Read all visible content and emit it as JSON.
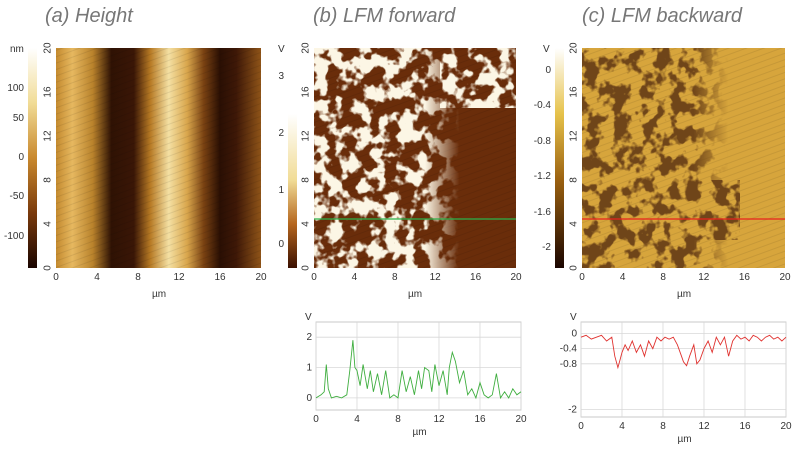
{
  "panels": [
    {
      "title": "(a) Height",
      "colorbar": {
        "unit": "nm",
        "ticks": [
          "100",
          "50",
          "0",
          "-50",
          "-100"
        ]
      },
      "yticks": [
        "20",
        "16",
        "12",
        "8",
        "4",
        "0"
      ],
      "xticks": [
        "0",
        "4",
        "8",
        "12",
        "16",
        "20"
      ],
      "xlabel": "µm"
    },
    {
      "title": "(b) LFM forward",
      "colorbar": {
        "unit": "V",
        "ticks": [
          "3",
          "2",
          "1",
          "0"
        ]
      },
      "yticks": [
        "20",
        "16",
        "12",
        "8",
        "4",
        "0"
      ],
      "xticks": [
        "0",
        "4",
        "8",
        "12",
        "16",
        "20"
      ],
      "xlabel": "µm",
      "scan_line_color": "#2bb34a"
    },
    {
      "title": "(c) LFM backward",
      "colorbar": {
        "unit": "V",
        "ticks": [
          "0",
          "-0.4",
          "-0.8",
          "-1.2",
          "-1.6",
          "-2"
        ]
      },
      "yticks": [
        "20",
        "16",
        "12",
        "8",
        "4",
        "0"
      ],
      "xticks": [
        "0",
        "4",
        "8",
        "12",
        "16",
        "20"
      ],
      "xlabel": "µm",
      "scan_line_color": "#e8231e"
    }
  ],
  "chart_data": [
    {
      "type": "line",
      "title": "",
      "xlabel": "µm",
      "ylabel": "V",
      "xlim": [
        0,
        20
      ],
      "ylim": [
        -0.4,
        2.5
      ],
      "yticks": [
        "2",
        "1",
        "0"
      ],
      "xticks": [
        "0",
        "4",
        "8",
        "12",
        "16",
        "20"
      ],
      "grid": true,
      "color": "#3fae3f",
      "series": [
        {
          "x": [
            0,
            0.5,
            0.8,
            1.0,
            1.2,
            1.5,
            2.0,
            2.5,
            3.0,
            3.3,
            3.6,
            3.8,
            4.0,
            4.3,
            4.6,
            5.0,
            5.3,
            5.6,
            6.0,
            6.4,
            6.8,
            7.2,
            7.6,
            8.0,
            8.4,
            8.8,
            9.2,
            9.6,
            10.0,
            10.3,
            10.6,
            11.0,
            11.3,
            11.6,
            12.0,
            12.4,
            12.8,
            13.0,
            13.3,
            13.6,
            14.0,
            14.4,
            14.8,
            15.2,
            15.6,
            16.0,
            16.4,
            16.8,
            17.2,
            17.6,
            18.0,
            18.4,
            18.8,
            19.2,
            19.6,
            20.0
          ],
          "y": [
            0.0,
            0.1,
            0.2,
            1.1,
            0.3,
            0.0,
            0.05,
            0.0,
            0.1,
            0.9,
            1.9,
            1.0,
            0.9,
            0.4,
            1.1,
            0.3,
            0.9,
            0.2,
            0.8,
            0.1,
            0.9,
            0.0,
            0.1,
            0.0,
            0.9,
            0.2,
            0.7,
            0.1,
            0.9,
            0.3,
            1.0,
            0.9,
            0.2,
            1.1,
            0.4,
            0.9,
            0.1,
            1.0,
            1.5,
            1.2,
            0.5,
            0.9,
            0.1,
            0.3,
            0.0,
            0.5,
            0.1,
            0.0,
            0.1,
            0.8,
            0.0,
            0.2,
            0.0,
            0.3,
            0.1,
            0.2
          ]
        }
      ]
    },
    {
      "type": "line",
      "title": "",
      "xlabel": "µm",
      "ylabel": "V",
      "xlim": [
        0,
        20
      ],
      "ylim": [
        -2.2,
        0.3
      ],
      "yticks": [
        "0",
        "-0.4",
        "-0.8",
        "-2"
      ],
      "yticks_extra": [
        "-0.4",
        "-0.8",
        "-2"
      ],
      "xticks": [
        "0",
        "4",
        "8",
        "12",
        "16",
        "20"
      ],
      "grid": true,
      "color": "#e0322f",
      "series": [
        {
          "x": [
            0,
            0.5,
            1.0,
            1.5,
            2.0,
            2.5,
            3.0,
            3.3,
            3.6,
            3.8,
            4.0,
            4.3,
            4.6,
            5.0,
            5.4,
            5.8,
            6.2,
            6.6,
            7.0,
            7.4,
            7.8,
            8.2,
            8.6,
            9.0,
            9.4,
            9.8,
            10.0,
            10.3,
            10.6,
            11.0,
            11.3,
            11.6,
            12.0,
            12.4,
            12.8,
            13.2,
            13.6,
            14.0,
            14.4,
            14.8,
            15.2,
            15.6,
            16.0,
            16.4,
            16.8,
            17.2,
            17.6,
            18.0,
            18.4,
            18.8,
            19.2,
            19.6,
            20.0
          ],
          "y": [
            -0.1,
            -0.05,
            -0.15,
            -0.1,
            -0.05,
            -0.2,
            -0.1,
            -0.6,
            -0.9,
            -0.7,
            -0.5,
            -0.3,
            -0.45,
            -0.2,
            -0.5,
            -0.3,
            -0.6,
            -0.2,
            -0.4,
            -0.1,
            -0.2,
            -0.1,
            -0.15,
            -0.1,
            -0.3,
            -0.6,
            -0.75,
            -0.85,
            -0.6,
            -0.3,
            -0.8,
            -0.7,
            -0.4,
            -0.2,
            -0.5,
            -0.1,
            -0.3,
            -0.1,
            -0.6,
            -0.2,
            -0.05,
            -0.15,
            -0.1,
            -0.2,
            -0.05,
            -0.1,
            -0.2,
            -0.1,
            -0.05,
            -0.15,
            -0.1,
            -0.2,
            -0.1
          ]
        }
      ]
    }
  ]
}
